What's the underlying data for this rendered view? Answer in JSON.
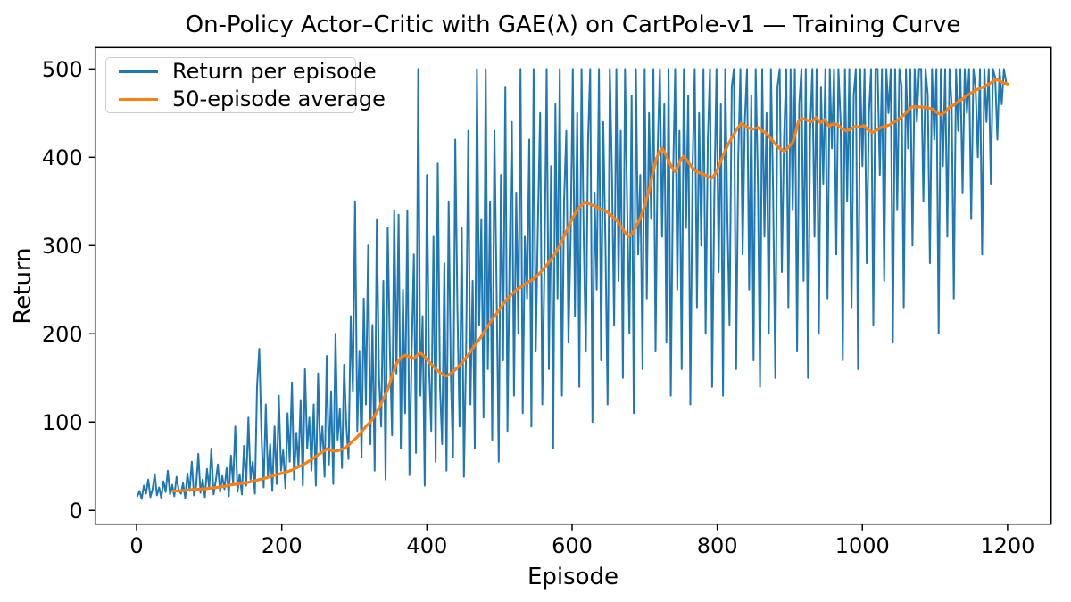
{
  "chart_data": {
    "type": "line",
    "title": "On-Policy Actor–Critic with GAE(λ) on CartPole-v1 — Training Curve",
    "xlabel": "Episode",
    "ylabel": "Return",
    "xlim": [
      -57,
      1260
    ],
    "ylim": [
      -15.6,
      524.3
    ],
    "xticks": [
      0,
      200,
      400,
      600,
      800,
      1000,
      1200
    ],
    "yticks": [
      0,
      100,
      200,
      300,
      400,
      500
    ],
    "grid": false,
    "legend": {
      "position": "upper left"
    },
    "colors": {
      "return_per_episode": "#1f77b4",
      "moving_average": "#ff7f0e"
    },
    "series": [
      {
        "name": "Return per episode",
        "color": "#1f77b4",
        "width": 2,
        "x_start": 1,
        "x_step": 3,
        "values": [
          16,
          22,
          13,
          28,
          19,
          35,
          15,
          24,
          41,
          17,
          26,
          14,
          33,
          21,
          45,
          18,
          29,
          16,
          38,
          23,
          19,
          31,
          14,
          42,
          22,
          55,
          17,
          27,
          64,
          20,
          35,
          15,
          47,
          25,
          70,
          18,
          33,
          52,
          21,
          39,
          24,
          48,
          16,
          62,
          30,
          95,
          21,
          41,
          18,
          73,
          28,
          105,
          35,
          55,
          19,
          140,
          183,
          87,
          26,
          120,
          38,
          75,
          22,
          95,
          30,
          130,
          45,
          68,
          25,
          110,
          55,
          145,
          35,
          88,
          50,
          125,
          28,
          160,
          70,
          105,
          45,
          120,
          28,
          155,
          65,
          95,
          38,
          175,
          52,
          135,
          30,
          200,
          80,
          115,
          48,
          165,
          95,
          58,
          220,
          135,
          350,
          90,
          180,
          60,
          240,
          120,
          300,
          75,
          210,
          45,
          330,
          150,
          95,
          260,
          35,
          320,
          180,
          85,
          340,
          155,
          335,
          70,
          250,
          110,
          340,
          40,
          180,
          290,
          65,
          500,
          130,
          220,
          28,
          380,
          160,
          90,
          310,
          55,
          393,
          140,
          75,
          280,
          45,
          350,
          150,
          60,
          420,
          230,
          95,
          320,
          38,
          185,
          430,
          120,
          260,
          70,
          500,
          210,
          330,
          105,
          500,
          160,
          350,
          80,
          430,
          250,
          55,
          380,
          170,
          480,
          90,
          290,
          440,
          130,
          360,
          200,
          500,
          110,
          310,
          240,
          420,
          95,
          500,
          180,
          330,
          450,
          120,
          280,
          500,
          160,
          390,
          70,
          460,
          240,
          500,
          130,
          350,
          430,
          190,
          310,
          500,
          220,
          450,
          140,
          500,
          310,
          180,
          420,
          500,
          100,
          360,
          250,
          500,
          170,
          440,
          300,
          120,
          500,
          380,
          210,
          500,
          260,
          430,
          150,
          500,
          340,
          200,
          470,
          110,
          500,
          290,
          380,
          160,
          500,
          240,
          450,
          330,
          500,
          180,
          410,
          500,
          310,
          460,
          190,
          500,
          130,
          370,
          500,
          250,
          430,
          160,
          500,
          320,
          470,
          120,
          390,
          500,
          230,
          450,
          300,
          500,
          200,
          420,
          500,
          140,
          360,
          500,
          270,
          460,
          130,
          500,
          330,
          210,
          480,
          500,
          160,
          400,
          500,
          290,
          440,
          500,
          250,
          470,
          170,
          500,
          370,
          140,
          500,
          310,
          450,
          200,
          500,
          360,
          150,
          480,
          500,
          270,
          420,
          500,
          230,
          500,
          340,
          500,
          180,
          460,
          500,
          260,
          500,
          150,
          430,
          500,
          310,
          500,
          200,
          480,
          370,
          500,
          240,
          500,
          410,
          500,
          290,
          500,
          440,
          170,
          500,
          350,
          500,
          230,
          470,
          500,
          160,
          500,
          390,
          500,
          280,
          450,
          500,
          210,
          500,
          500,
          380,
          500,
          260,
          500,
          450,
          500,
          190,
          500,
          340,
          500,
          480,
          230,
          500,
          410,
          500,
          300,
          500,
          440,
          500,
          500,
          350,
          500,
          470,
          280,
          500,
          420,
          500,
          200,
          500,
          390,
          500,
          310,
          500,
          460,
          240,
          500,
          430,
          500,
          360,
          500,
          450,
          500,
          330,
          500,
          480,
          400,
          500,
          290,
          500,
          440,
          500,
          370,
          500,
          490,
          420,
          500,
          460,
          500,
          485
        ]
      },
      {
        "name": "50-episode average",
        "color": "#ff7f0e",
        "width": 3.2,
        "points": [
          [
            50,
            22
          ],
          [
            60,
            22
          ],
          [
            70,
            23
          ],
          [
            80,
            24
          ],
          [
            90,
            24
          ],
          [
            100,
            25
          ],
          [
            110,
            26
          ],
          [
            120,
            27
          ],
          [
            130,
            29
          ],
          [
            140,
            30
          ],
          [
            150,
            31
          ],
          [
            160,
            33
          ],
          [
            170,
            35
          ],
          [
            180,
            37
          ],
          [
            190,
            40
          ],
          [
            200,
            42
          ],
          [
            208,
            44
          ],
          [
            215,
            46
          ],
          [
            222,
            49
          ],
          [
            230,
            52
          ],
          [
            238,
            56
          ],
          [
            245,
            60
          ],
          [
            252,
            64
          ],
          [
            258,
            67
          ],
          [
            263,
            70
          ],
          [
            268,
            68
          ],
          [
            273,
            67
          ],
          [
            279,
            68
          ],
          [
            285,
            70
          ],
          [
            291,
            73
          ],
          [
            297,
            78
          ],
          [
            304,
            83
          ],
          [
            310,
            89
          ],
          [
            316,
            95
          ],
          [
            322,
            100
          ],
          [
            328,
            107
          ],
          [
            334,
            116
          ],
          [
            340,
            126
          ],
          [
            346,
            137
          ],
          [
            352,
            152
          ],
          [
            358,
            166
          ],
          [
            364,
            173
          ],
          [
            370,
            176
          ],
          [
            376,
            174
          ],
          [
            382,
            172
          ],
          [
            388,
            177
          ],
          [
            392,
            178
          ],
          [
            397,
            174
          ],
          [
            403,
            168
          ],
          [
            409,
            163
          ],
          [
            415,
            158
          ],
          [
            421,
            154
          ],
          [
            427,
            152
          ],
          [
            433,
            155
          ],
          [
            440,
            160
          ],
          [
            447,
            166
          ],
          [
            454,
            173
          ],
          [
            461,
            181
          ],
          [
            468,
            189
          ],
          [
            475,
            197
          ],
          [
            482,
            206
          ],
          [
            489,
            215
          ],
          [
            496,
            223
          ],
          [
            503,
            231
          ],
          [
            510,
            239
          ],
          [
            517,
            245
          ],
          [
            524,
            250
          ],
          [
            531,
            254
          ],
          [
            538,
            258
          ],
          [
            545,
            261
          ],
          [
            551,
            265
          ],
          [
            558,
            271
          ],
          [
            565,
            278
          ],
          [
            572,
            285
          ],
          [
            579,
            294
          ],
          [
            586,
            305
          ],
          [
            593,
            318
          ],
          [
            600,
            330
          ],
          [
            606,
            339
          ],
          [
            612,
            345
          ],
          [
            618,
            349
          ],
          [
            624,
            347
          ],
          [
            630,
            345
          ],
          [
            637,
            342
          ],
          [
            644,
            340
          ],
          [
            650,
            337
          ],
          [
            656,
            333
          ],
          [
            662,
            328
          ],
          [
            668,
            321
          ],
          [
            673,
            315
          ],
          [
            678,
            310
          ],
          [
            683,
            314
          ],
          [
            688,
            321
          ],
          [
            694,
            331
          ],
          [
            700,
            345
          ],
          [
            706,
            362
          ],
          [
            711,
            381
          ],
          [
            716,
            398
          ],
          [
            720,
            406
          ],
          [
            724,
            410
          ],
          [
            728,
            405
          ],
          [
            733,
            396
          ],
          [
            738,
            388
          ],
          [
            742,
            384
          ],
          [
            746,
            390
          ],
          [
            750,
            398
          ],
          [
            754,
            401
          ],
          [
            758,
            397
          ],
          [
            763,
            391
          ],
          [
            768,
            386
          ],
          [
            774,
            383
          ],
          [
            780,
            381
          ],
          [
            786,
            379
          ],
          [
            792,
            376
          ],
          [
            798,
            382
          ],
          [
            804,
            394
          ],
          [
            810,
            406
          ],
          [
            816,
            416
          ],
          [
            822,
            425
          ],
          [
            828,
            433
          ],
          [
            833,
            438
          ],
          [
            838,
            436
          ],
          [
            844,
            433
          ],
          [
            850,
            432
          ],
          [
            856,
            434
          ],
          [
            862,
            430
          ],
          [
            868,
            427
          ],
          [
            874,
            421
          ],
          [
            880,
            415
          ],
          [
            886,
            410
          ],
          [
            892,
            407
          ],
          [
            898,
            411
          ],
          [
            904,
            417
          ],
          [
            908,
            428
          ],
          [
            912,
            441
          ],
          [
            918,
            444
          ],
          [
            924,
            442
          ],
          [
            930,
            440
          ],
          [
            936,
            445
          ],
          [
            942,
            439
          ],
          [
            948,
            443
          ],
          [
            954,
            435
          ],
          [
            960,
            438
          ],
          [
            966,
            437
          ],
          [
            972,
            432
          ],
          [
            978,
            430
          ],
          [
            984,
            432
          ],
          [
            990,
            435
          ],
          [
            996,
            434
          ],
          [
            1002,
            436
          ],
          [
            1008,
            431
          ],
          [
            1014,
            428
          ],
          [
            1020,
            431
          ],
          [
            1026,
            434
          ],
          [
            1032,
            435
          ],
          [
            1038,
            437
          ],
          [
            1044,
            440
          ],
          [
            1050,
            443
          ],
          [
            1056,
            447
          ],
          [
            1062,
            452
          ],
          [
            1068,
            457
          ],
          [
            1075,
            457
          ],
          [
            1082,
            457
          ],
          [
            1089,
            456
          ],
          [
            1096,
            455
          ],
          [
            1102,
            451
          ],
          [
            1108,
            448
          ],
          [
            1114,
            451
          ],
          [
            1120,
            457
          ],
          [
            1126,
            459
          ],
          [
            1132,
            463
          ],
          [
            1138,
            466
          ],
          [
            1144,
            470
          ],
          [
            1150,
            473
          ],
          [
            1156,
            476
          ],
          [
            1162,
            478
          ],
          [
            1168,
            480
          ],
          [
            1174,
            483
          ],
          [
            1180,
            486
          ],
          [
            1185,
            488
          ],
          [
            1190,
            486
          ],
          [
            1195,
            484
          ],
          [
            1200,
            483
          ]
        ]
      }
    ]
  },
  "legend": {
    "entries": [
      {
        "label": "Return per episode",
        "color": "#1f77b4"
      },
      {
        "label": "50-episode average",
        "color": "#ff7f0e"
      }
    ]
  }
}
